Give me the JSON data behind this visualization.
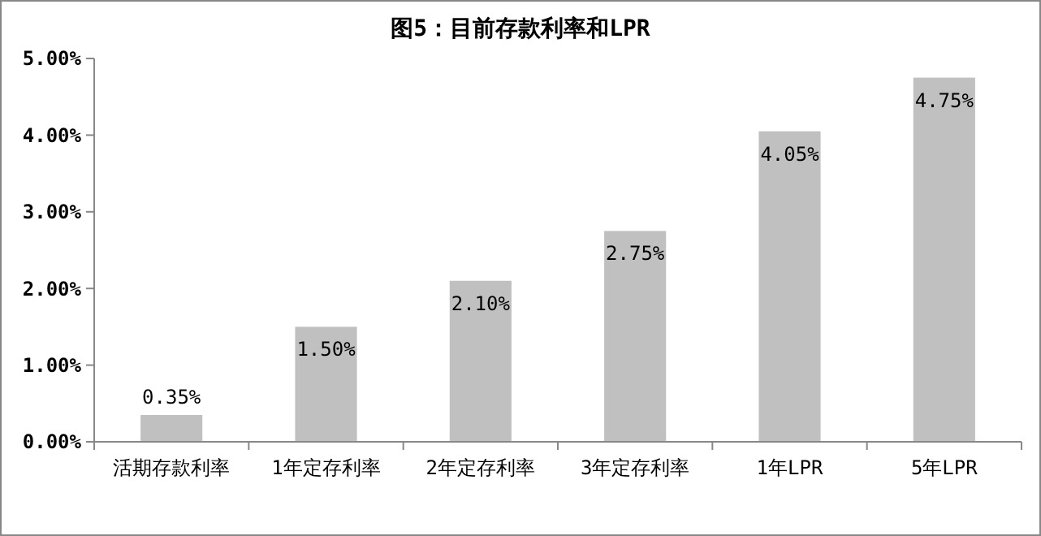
{
  "chart_data": {
    "type": "bar",
    "title": "图5：目前存款利率和LPR",
    "categories": [
      "活期存款利率",
      "1年定存利率",
      "2年定存利率",
      "3年定存利率",
      "1年LPR",
      "5年LPR"
    ],
    "values": [
      0.35,
      1.5,
      2.1,
      2.75,
      4.05,
      4.75
    ],
    "value_labels": [
      "0.35%",
      "1.50%",
      "2.10%",
      "2.75%",
      "4.05%",
      "4.75%"
    ],
    "color": "#c0c0c0",
    "ylim": [
      0,
      5
    ],
    "yticks": [
      {
        "value": 0,
        "label": "0.00%"
      },
      {
        "value": 1,
        "label": "1.00%"
      },
      {
        "value": 2,
        "label": "2.00%"
      },
      {
        "value": 3,
        "label": "3.00%"
      },
      {
        "value": 4,
        "label": "4.00%"
      },
      {
        "value": 5,
        "label": "5.00%"
      }
    ],
    "grid": false
  }
}
